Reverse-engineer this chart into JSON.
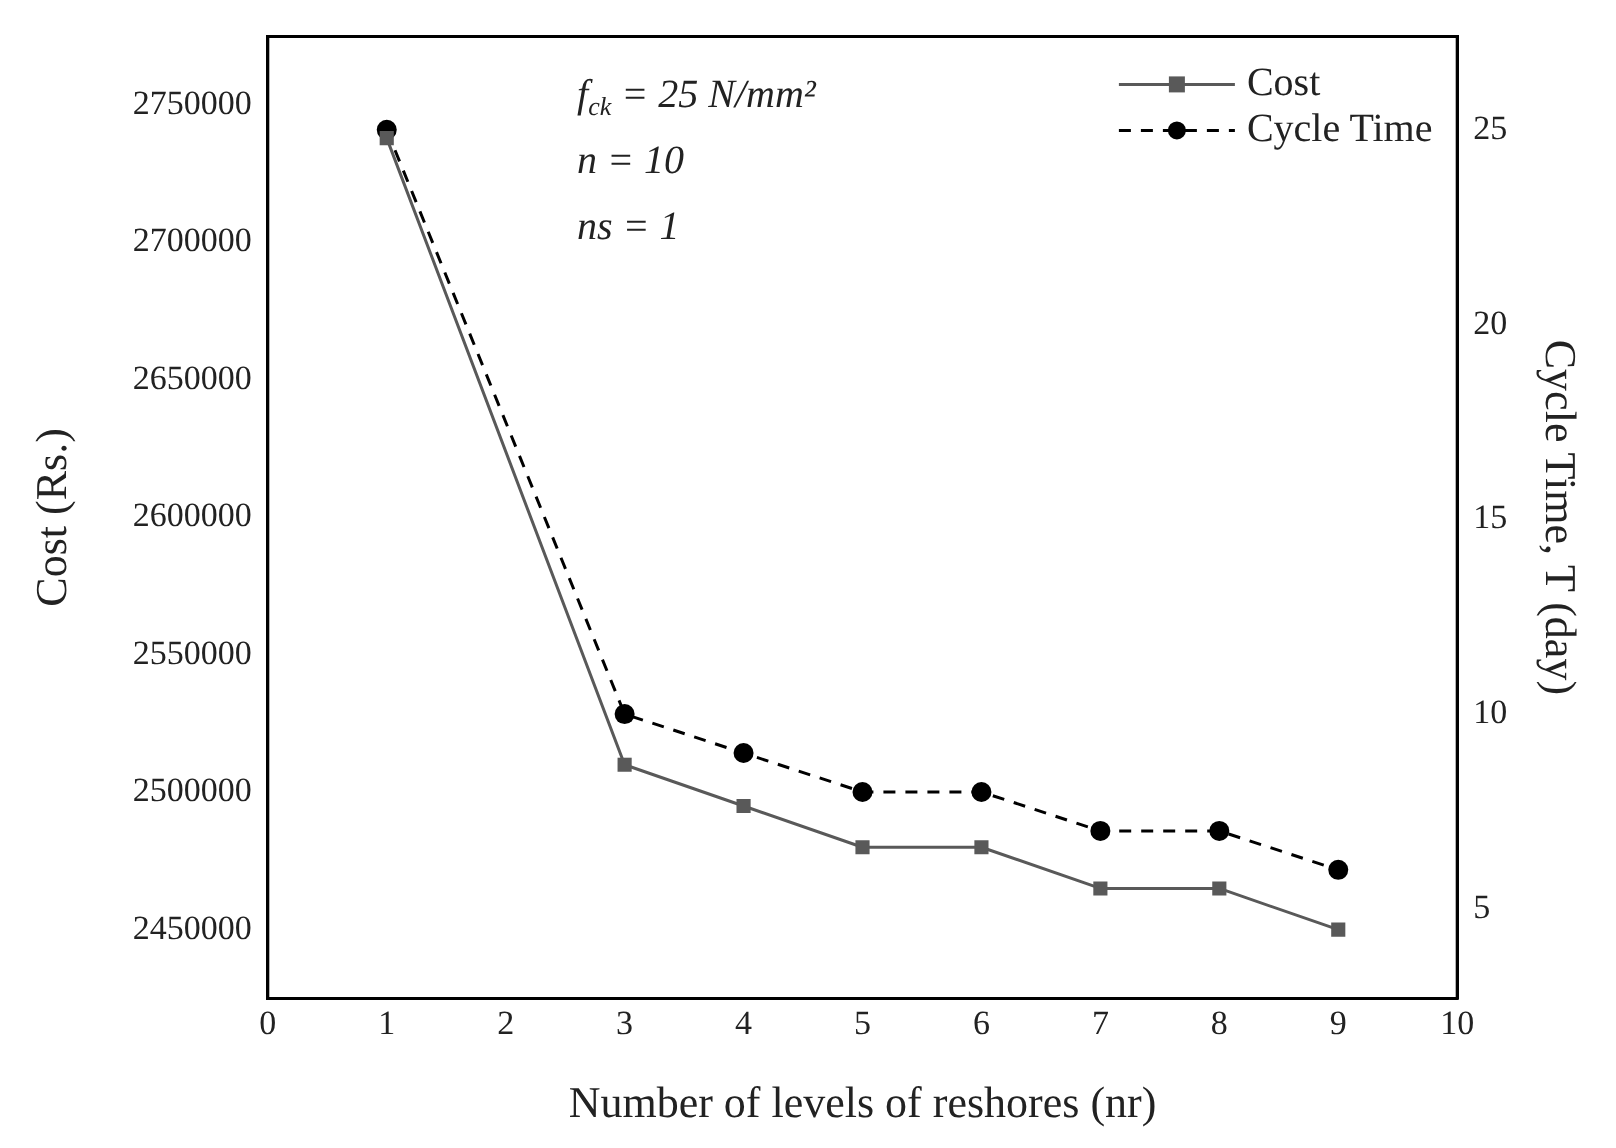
{
  "chart_data": {
    "type": "line",
    "x": [
      1,
      3,
      4,
      5,
      6,
      7,
      8,
      9
    ],
    "series": [
      {
        "name": "Cost",
        "color": "#595959",
        "marker": "square",
        "line_style": "solid",
        "values": [
          2738000,
          2510000,
          2495000,
          2480000,
          2480000,
          2465000,
          2465000,
          2450000
        ]
      },
      {
        "name": "Cycle Time",
        "color": "#000000",
        "marker": "circle",
        "line_style": "dashed",
        "axis": "y2",
        "values": [
          25,
          10,
          9,
          8,
          8,
          7,
          7,
          6
        ]
      }
    ],
    "xlabel": "Number of levels of reshores (nr)",
    "ylabel": "Cost (Rs.)",
    "y2label": "Cycle Time, T (day)",
    "xlim": [
      0,
      10
    ],
    "xticks": [
      0,
      1,
      2,
      3,
      4,
      5,
      6,
      7,
      8,
      9,
      10
    ],
    "ylim": [
      2425000,
      2775000
    ],
    "yticks": [
      2450000,
      2500000,
      2550000,
      2600000,
      2650000,
      2700000,
      2750000
    ],
    "y2lim": [
      2.7,
      27.4
    ],
    "y2ticks": [
      5,
      10,
      15,
      20,
      25
    ],
    "annotations": [
      "f$_{ck}$ = 25 N/mm²",
      "n = 10",
      "ns = 1"
    ],
    "grid": false,
    "legend": "top right"
  }
}
